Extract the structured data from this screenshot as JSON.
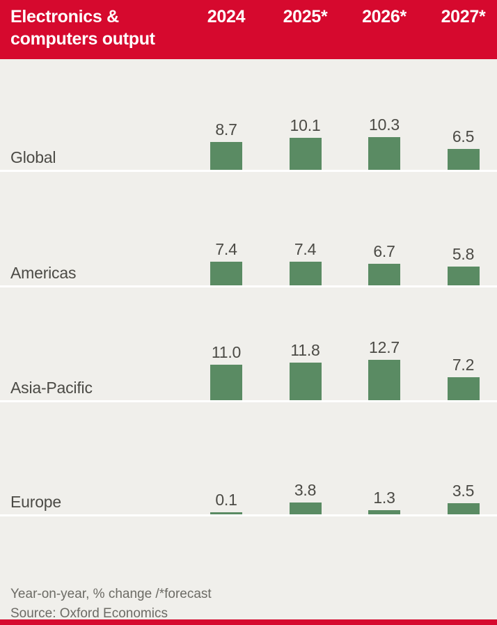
{
  "header": {
    "title_lines": [
      "Electronics &",
      "computers output"
    ]
  },
  "footer": {
    "note": "Year-on-year, % change /*forecast",
    "source": "Source: Oxford Economics"
  },
  "colors": {
    "accent_red": "#d6092e",
    "bar_green": "#5a8b63",
    "background": "#f0efeb",
    "header_text": "#ffffff",
    "label_text": "#4b4a45",
    "footer_text": "#6c6b65",
    "baseline": "#ffffff"
  },
  "chart_data": {
    "type": "bar",
    "title": "Electronics & computers output",
    "categories": [
      "2024",
      "2025*",
      "2026*",
      "2027*"
    ],
    "series": [
      {
        "name": "Global",
        "values": [
          8.7,
          10.1,
          10.3,
          6.5
        ]
      },
      {
        "name": "Americas",
        "values": [
          7.4,
          7.4,
          6.7,
          5.8
        ]
      },
      {
        "name": "Asia-Pacific",
        "values": [
          11.0,
          11.8,
          12.7,
          7.2
        ]
      },
      {
        "name": "Europe",
        "values": [
          0.1,
          3.8,
          1.3,
          3.5
        ]
      }
    ],
    "value_labels": true,
    "ylim": [
      0,
      13
    ],
    "xlabel": "",
    "ylabel": "Year-on-year, % change",
    "note": "Year-on-year, % change /*forecast",
    "source": "Source: Oxford Economics",
    "legend": "none",
    "grid": "baseline-only"
  }
}
